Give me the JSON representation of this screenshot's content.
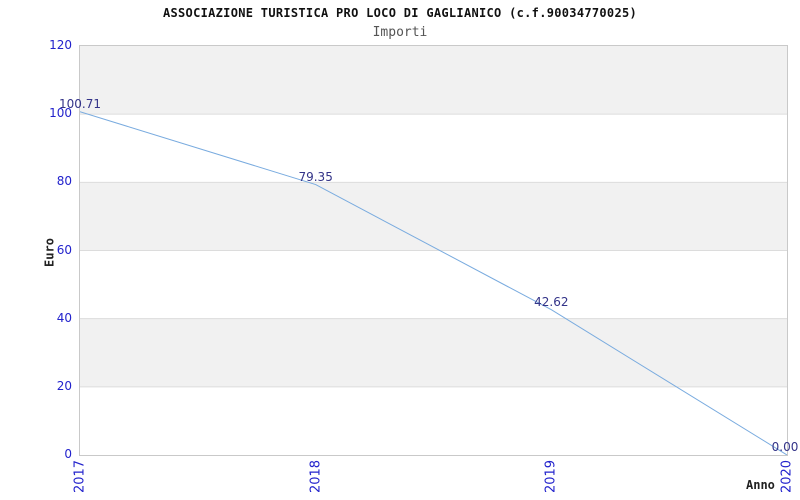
{
  "chart_data": {
    "type": "line",
    "title": "ASSOCIAZIONE TURISTICA PRO LOCO DI GAGLIANICO (c.f.90034770025)",
    "subtitle": "Importi",
    "xlabel": "Anno",
    "ylabel": "Euro",
    "categories": [
      "2017",
      "2018",
      "2019",
      "2020"
    ],
    "series": [
      {
        "name": "Importi",
        "values": [
          100.71,
          79.35,
          42.62,
          0.0
        ]
      }
    ],
    "point_labels": [
      "100.71",
      "79.35",
      "42.62",
      "0.00"
    ],
    "ylim": [
      0,
      120
    ],
    "yticks": [
      0,
      20,
      40,
      60,
      80,
      100,
      120
    ],
    "grid": "horizontal gridlines at each y tick",
    "legend": "none",
    "background": "alternating horizontal bands, gray on 20-40 / 60-80 / 100-120",
    "colors": {
      "line": "#79abdf",
      "tick_text": "#2222cc",
      "value_text": "#333388",
      "band_fill": "#f1f1f1",
      "band_alt_fill": "#ffffff",
      "gridline": "#dcdcdc",
      "plot_border": "#c9c9c9",
      "title_text": "#111111",
      "subtitle_text": "#555555",
      "axis_title_text": "#222222"
    }
  }
}
